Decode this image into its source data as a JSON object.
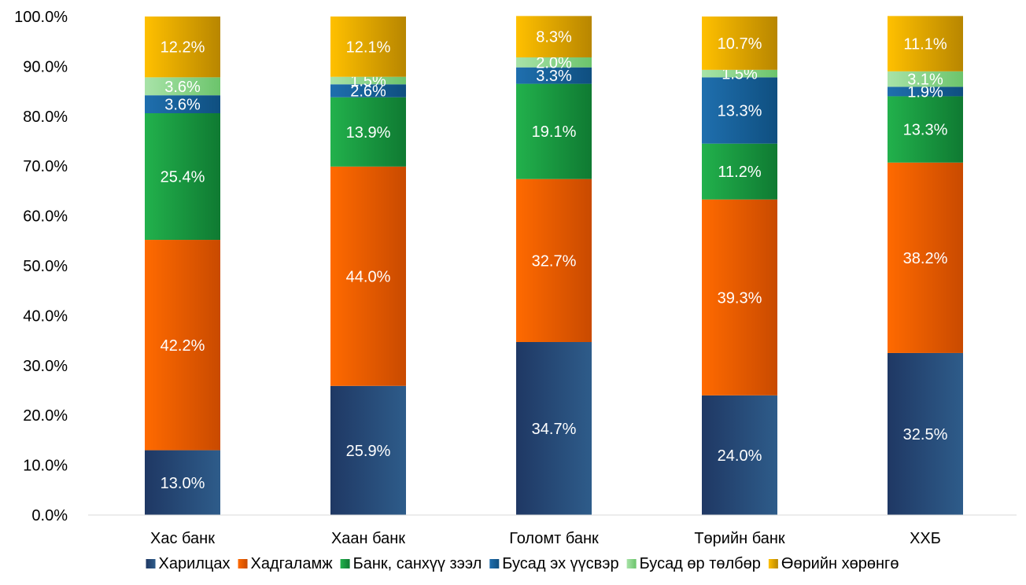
{
  "chart_data": {
    "type": "bar",
    "stacked": true,
    "categories": [
      "Хас банк",
      "Хаан банк",
      "Голомт банк",
      "Төрийн банк",
      "ХХБ"
    ],
    "ylim": [
      0,
      100
    ],
    "yticks": [
      "0.0%",
      "10.0%",
      "20.0%",
      "30.0%",
      "40.0%",
      "50.0%",
      "60.0%",
      "70.0%",
      "80.0%",
      "90.0%",
      "100.0%"
    ],
    "grid": false,
    "legend_position": "bottom",
    "series": [
      {
        "name": "Харилцах",
        "color": "#1f3864",
        "color2": "#2e5c8a",
        "values": [
          13.0,
          25.9,
          34.7,
          24.0,
          32.5
        ],
        "labels": [
          "13.0%",
          "25.9%",
          "34.7%",
          "24.0%",
          "32.5%"
        ]
      },
      {
        "name": "Хадгаламж",
        "color": "#ff6a00",
        "color2": "#c94a00",
        "values": [
          42.2,
          44.0,
          32.7,
          39.3,
          38.2
        ],
        "labels": [
          "42.2%",
          "44.0%",
          "32.7%",
          "39.3%",
          "38.2%"
        ]
      },
      {
        "name": "Банк, санхүү зээл",
        "color": "#22b14c",
        "color2": "#0f7a32",
        "values": [
          25.4,
          13.9,
          19.1,
          11.2,
          13.3
        ],
        "labels": [
          "25.4%",
          "13.9%",
          "19.1%",
          "11.2%",
          "13.3%"
        ]
      },
      {
        "name": "Бусад эх үүсвэр",
        "color": "#1f6fae",
        "color2": "#0f4f80",
        "values": [
          3.6,
          2.6,
          3.3,
          13.3,
          1.9
        ],
        "labels": [
          "3.6%",
          "2.6%",
          "3.3%",
          "13.3%",
          "1.9%"
        ]
      },
      {
        "name": "Бусад өр төлбөр",
        "color": "#a8e3a8",
        "color2": "#6cc46c",
        "values": [
          3.6,
          1.5,
          2.0,
          1.5,
          3.1
        ],
        "labels": [
          "3.6%",
          "1.5%",
          "2.0%",
          "1.5%",
          "3.1%"
        ]
      },
      {
        "name": "Өөрийн хөрөнгө",
        "color": "#ffc000",
        "color2": "#b88600",
        "values": [
          12.2,
          12.1,
          8.3,
          10.7,
          11.1
        ],
        "labels": [
          "12.2%",
          "12.1%",
          "8.3%",
          "10.7%",
          "11.1%"
        ]
      }
    ]
  }
}
